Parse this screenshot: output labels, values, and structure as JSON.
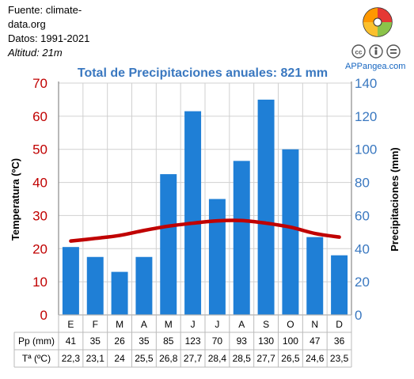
{
  "source": {
    "line1": "Fuente: climate-",
    "line2": "data.org",
    "line3": "Datos: 1991-2021",
    "line4": "Altitud: 21m"
  },
  "brand": {
    "logo": "puzzle-globe-icon",
    "license_icons": [
      "cc-icon",
      "person-attribution-icon",
      "equals-icon"
    ],
    "site": "APPangea.com"
  },
  "chart_data": {
    "type": "bar",
    "title": "Total de Precipitaciones anuales: 821 mm",
    "categories": [
      "E",
      "F",
      "M",
      "A",
      "M",
      "J",
      "J",
      "A",
      "S",
      "O",
      "N",
      "D"
    ],
    "series": [
      {
        "name": "Pp (mm)",
        "type": "bar",
        "axis": "right",
        "values": [
          41,
          35,
          26,
          35,
          85,
          123,
          70,
          93,
          130,
          100,
          47,
          36
        ],
        "color": "#1f7fd6"
      },
      {
        "name": "Tª (ºC)",
        "type": "line",
        "axis": "left",
        "values": [
          22.3,
          23.1,
          24,
          25.5,
          26.8,
          27.7,
          28.4,
          28.5,
          27.7,
          26.5,
          24.6,
          23.5
        ],
        "color": "#c00000"
      }
    ],
    "table_values": {
      "pp": [
        "41",
        "35",
        "26",
        "35",
        "85",
        "123",
        "70",
        "93",
        "130",
        "100",
        "47",
        "36"
      ],
      "t": [
        "22,3",
        "23,1",
        "24",
        "25,5",
        "26,8",
        "27,7",
        "28,4",
        "28,5",
        "27,7",
        "26,5",
        "24,6",
        "23,5"
      ]
    },
    "ylabel_left": "Temperatura (ºC)",
    "ylabel_right": "Precipitaciones (mm)",
    "ylim_left": [
      0,
      70
    ],
    "ylim_right": [
      0,
      140
    ],
    "yticks_left": [
      "0",
      "10",
      "20",
      "30",
      "40",
      "50",
      "60",
      "70"
    ],
    "yticks_right": [
      "0",
      "20",
      "40",
      "60",
      "80",
      "100",
      "120",
      "140"
    ],
    "grid": true,
    "colors": {
      "left_axis": "#c00000",
      "right_axis": "#3a78c0",
      "title": "#3a78c0"
    }
  }
}
